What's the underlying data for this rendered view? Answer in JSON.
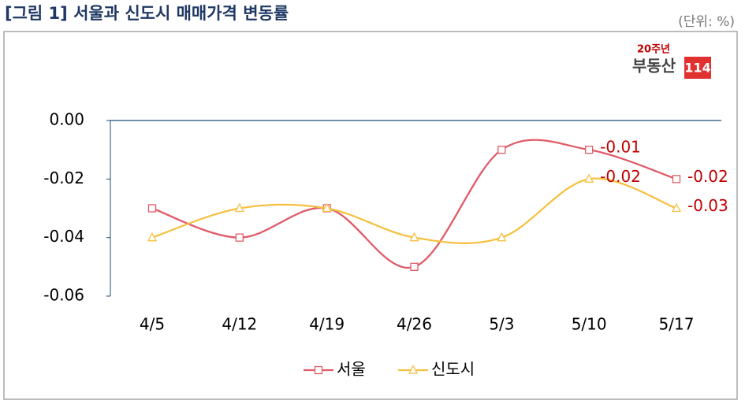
{
  "chart_data": {
    "type": "line",
    "title": "[그림 1] 서울과 신도시 매매가격 변동률",
    "unit_note": "(단위: %)",
    "logo": {
      "top": "20주년",
      "name": "부동산",
      "number": "114"
    },
    "categories": [
      "4/5",
      "4/12",
      "4/19",
      "4/26",
      "5/3",
      "5/10",
      "5/17"
    ],
    "series": [
      {
        "name": "서울",
        "color": "#df5b68",
        "marker": "square",
        "values": [
          -0.03,
          -0.04,
          -0.03,
          -0.05,
          -0.01,
          -0.01,
          -0.02
        ],
        "value_labels": [
          null,
          null,
          null,
          null,
          null,
          "-0.01",
          "-0.02"
        ]
      },
      {
        "name": "신도시",
        "color": "#f6c143",
        "marker": "triangle",
        "values": [
          -0.04,
          -0.03,
          -0.03,
          -0.04,
          -0.04,
          -0.02,
          -0.03
        ],
        "value_labels": [
          null,
          null,
          null,
          null,
          null,
          "-0.02",
          "-0.03"
        ]
      }
    ],
    "ylim": [
      -0.06,
      0
    ],
    "yticks": [
      {
        "value": 0,
        "label": "0.00"
      },
      -0.02,
      -0.04,
      -0.06
    ],
    "smooth": true,
    "legend": "bottom"
  }
}
